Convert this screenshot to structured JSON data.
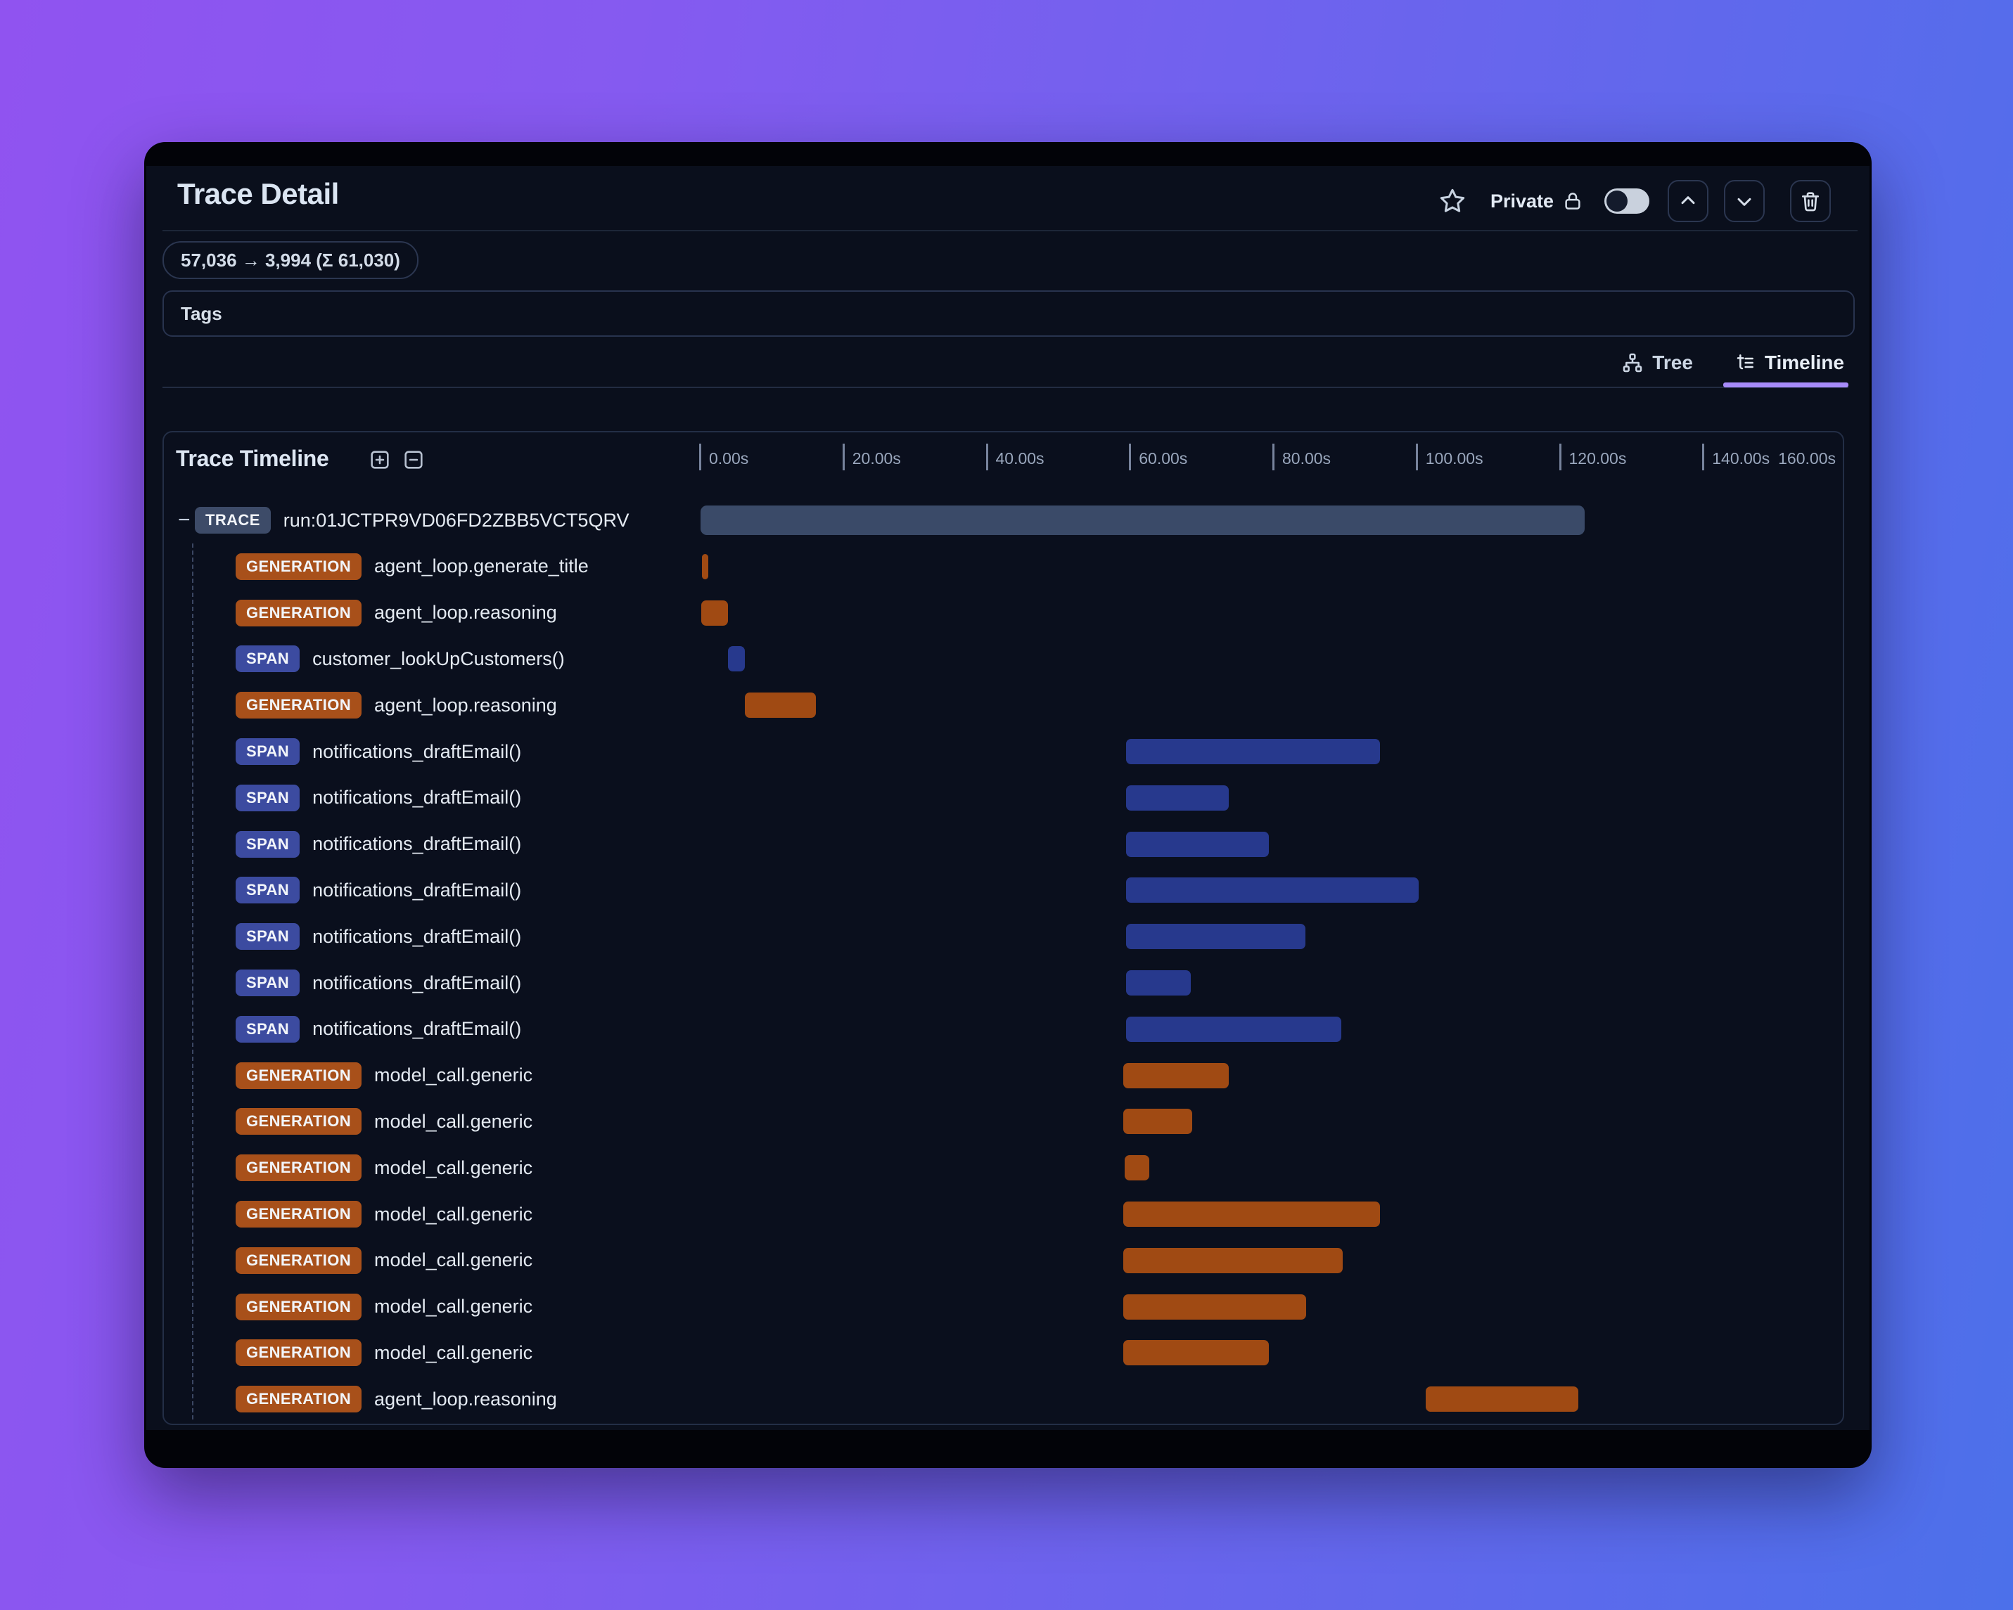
{
  "header": {
    "title": "Trace Detail",
    "token_usage": "57,036 → 3,994 (Σ 61,030)",
    "tags_label": "Tags",
    "privacy": {
      "label": "Private",
      "toggle_state": "off"
    }
  },
  "tabs": [
    {
      "label": "Tree",
      "active": false
    },
    {
      "label": "Timeline",
      "active": true
    }
  ],
  "timeline": {
    "title": "Trace Timeline",
    "axis": {
      "unit": "seconds",
      "min": 0,
      "max": 160,
      "tick_labels": [
        "0.00s",
        "20.00s",
        "40.00s",
        "60.00s",
        "80.00s",
        "100.00s",
        "120.00s",
        "140.00s",
        "160.00s"
      ]
    },
    "rows": [
      {
        "type": "TRACE",
        "name": "run:01JCTPR9VD06FD2ZBB5VCT5QRV",
        "start_s": 0.2,
        "end_s": 123.6,
        "depth": 0,
        "collapsible": true
      },
      {
        "type": "GENERATION",
        "name": "agent_loop.generate_title",
        "start_s": 0.4,
        "end_s": 1.3,
        "depth": 1
      },
      {
        "type": "GENERATION",
        "name": "agent_loop.reasoning",
        "start_s": 0.3,
        "end_s": 4.0,
        "depth": 1
      },
      {
        "type": "SPAN",
        "name": "customer_lookUpCustomers()",
        "start_s": 4.0,
        "end_s": 6.4,
        "depth": 1
      },
      {
        "type": "GENERATION",
        "name": "agent_loop.reasoning",
        "start_s": 6.4,
        "end_s": 16.3,
        "depth": 1
      },
      {
        "type": "SPAN",
        "name": "notifications_draftEmail()",
        "start_s": 59.6,
        "end_s": 95.0,
        "depth": 1
      },
      {
        "type": "SPAN",
        "name": "notifications_draftEmail()",
        "start_s": 59.6,
        "end_s": 73.9,
        "depth": 1
      },
      {
        "type": "SPAN",
        "name": "notifications_draftEmail()",
        "start_s": 59.6,
        "end_s": 79.5,
        "depth": 1
      },
      {
        "type": "SPAN",
        "name": "notifications_draftEmail()",
        "start_s": 59.6,
        "end_s": 100.4,
        "depth": 1
      },
      {
        "type": "SPAN",
        "name": "notifications_draftEmail()",
        "start_s": 59.6,
        "end_s": 84.6,
        "depth": 1
      },
      {
        "type": "SPAN",
        "name": "notifications_draftEmail()",
        "start_s": 59.6,
        "end_s": 68.6,
        "depth": 1
      },
      {
        "type": "SPAN",
        "name": "notifications_draftEmail()",
        "start_s": 59.6,
        "end_s": 89.6,
        "depth": 1
      },
      {
        "type": "GENERATION",
        "name": "model_call.generic",
        "start_s": 59.2,
        "end_s": 73.9,
        "depth": 1
      },
      {
        "type": "GENERATION",
        "name": "model_call.generic",
        "start_s": 59.2,
        "end_s": 68.8,
        "depth": 1
      },
      {
        "type": "GENERATION",
        "name": "model_call.generic",
        "start_s": 59.4,
        "end_s": 62.8,
        "depth": 1
      },
      {
        "type": "GENERATION",
        "name": "model_call.generic",
        "start_s": 59.2,
        "end_s": 95.0,
        "depth": 1
      },
      {
        "type": "GENERATION",
        "name": "model_call.generic",
        "start_s": 59.2,
        "end_s": 89.8,
        "depth": 1
      },
      {
        "type": "GENERATION",
        "name": "model_call.generic",
        "start_s": 59.2,
        "end_s": 84.7,
        "depth": 1
      },
      {
        "type": "GENERATION",
        "name": "model_call.generic",
        "start_s": 59.2,
        "end_s": 79.5,
        "depth": 1
      },
      {
        "type": "GENERATION",
        "name": "agent_loop.reasoning",
        "start_s": 101.4,
        "end_s": 122.7,
        "depth": 1
      }
    ]
  },
  "colors": {
    "TRACE": {
      "badge": "#3d4b68",
      "bar": "#3a4a68"
    },
    "GENERATION": {
      "badge": "#a8501a",
      "bar": "#a04a13"
    },
    "SPAN": {
      "badge": "#3c4ba0",
      "bar": "#27398d"
    },
    "tab_active_underline": "#a78bfa",
    "background_gradient": [
      "#9053f0",
      "#4c70ea"
    ]
  }
}
